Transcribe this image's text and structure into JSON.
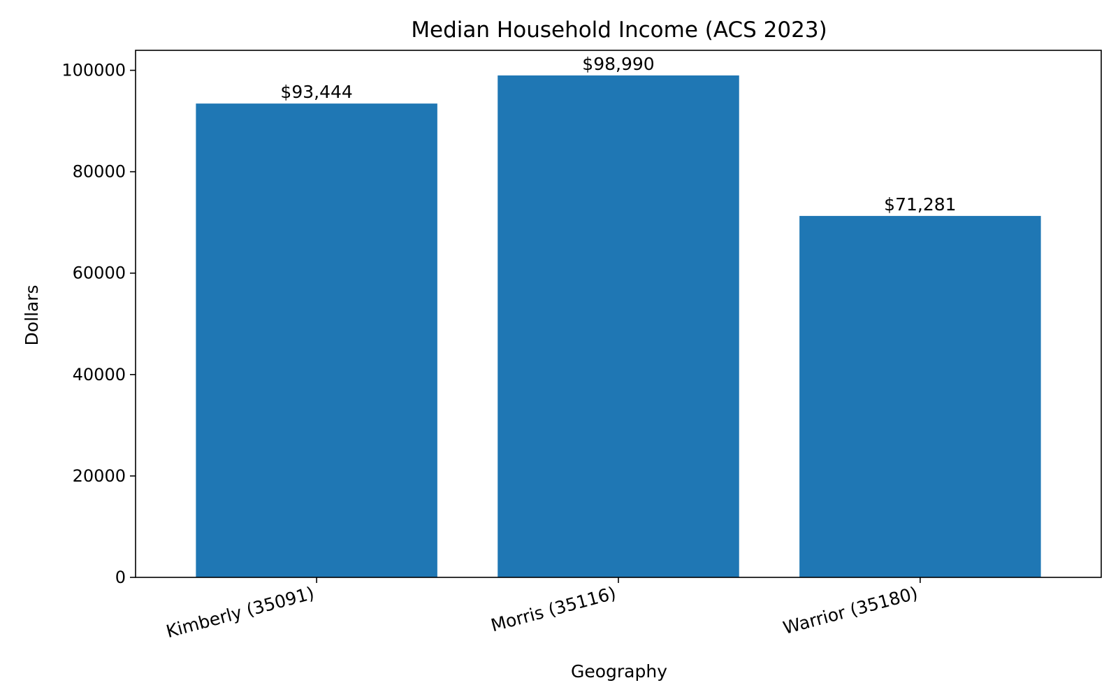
{
  "chart_data": {
    "type": "bar",
    "title": "Median Household Income (ACS 2023)",
    "xlabel": "Geography",
    "ylabel": "Dollars",
    "categories": [
      "Kimberly (35091)",
      "Morris (35116)",
      "Warrior (35180)"
    ],
    "values": [
      93444,
      98990,
      71281
    ],
    "data_labels": [
      "$93,444",
      "$98,990",
      "$71,281"
    ],
    "yticks": [
      0,
      20000,
      40000,
      60000,
      80000,
      100000
    ],
    "ytick_labels": [
      "0",
      "20000",
      "40000",
      "60000",
      "80000",
      "100000"
    ],
    "ylim": [
      0,
      103940
    ],
    "grid": false,
    "legend": "none",
    "bar_color": "#1f77b4"
  }
}
